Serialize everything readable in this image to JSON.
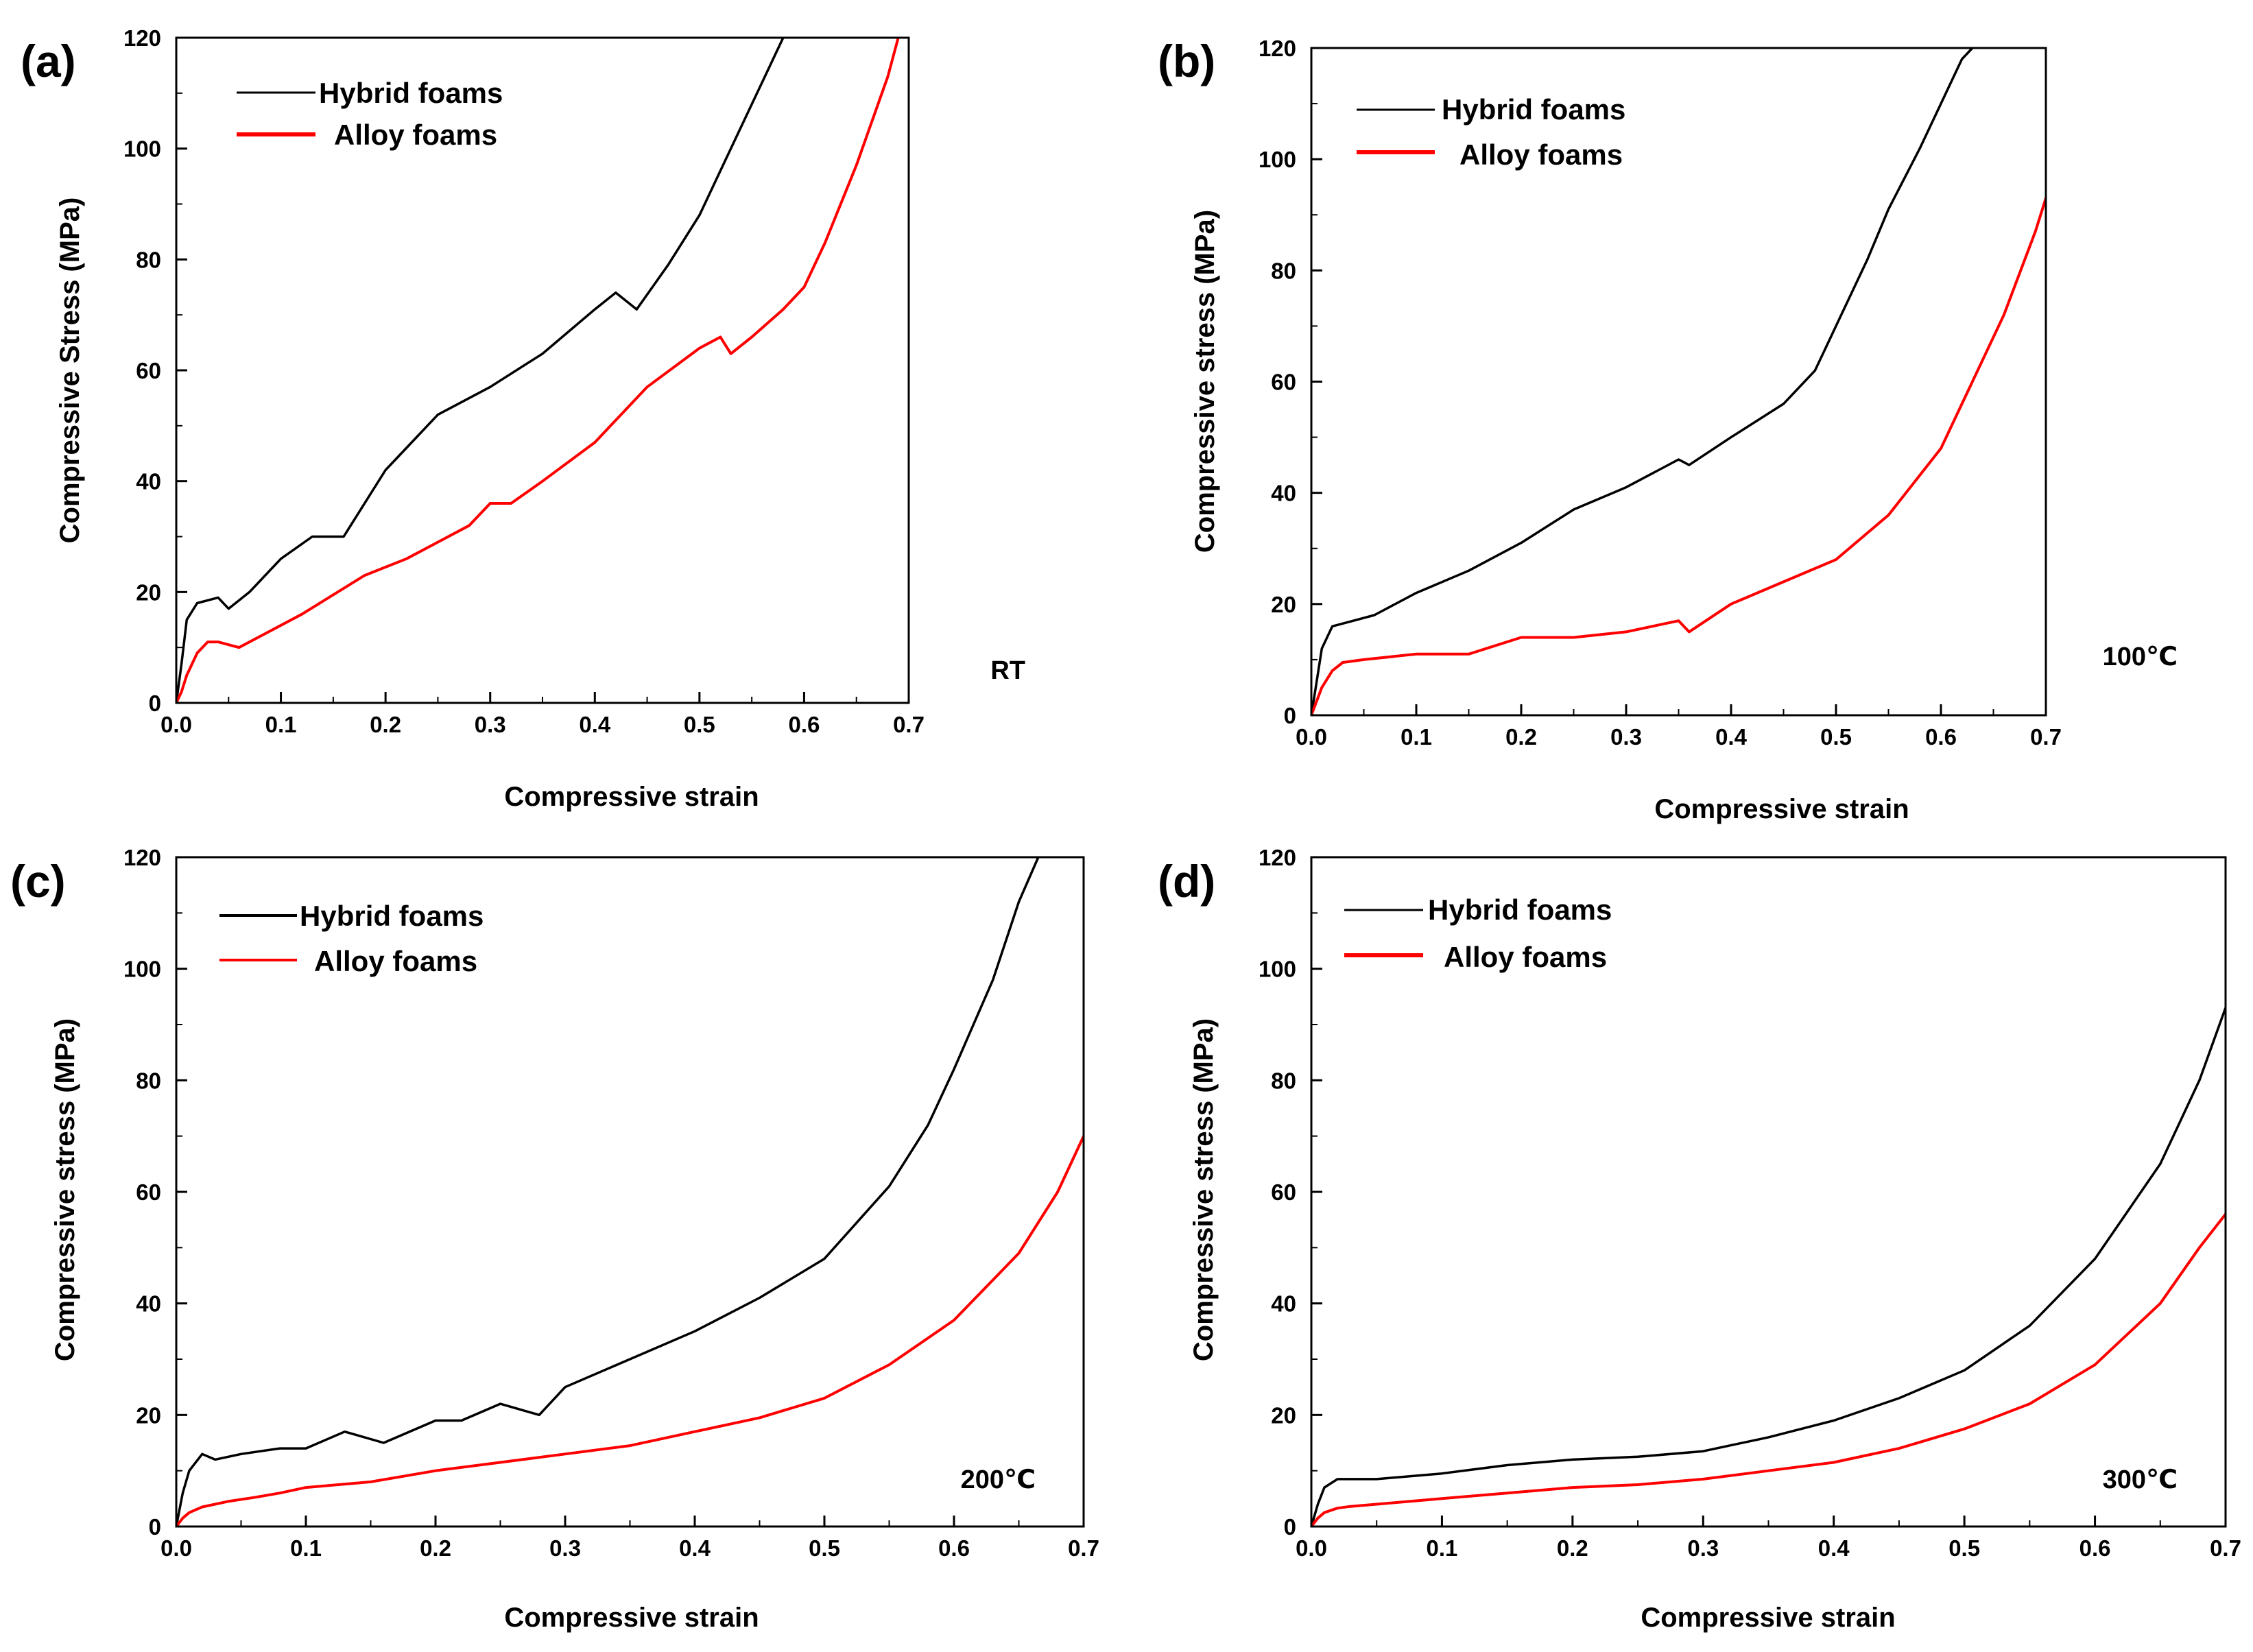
{
  "figure": {
    "hybrid_color": "#000000",
    "alloy_color": "#ff0000"
  },
  "chart_data": [
    {
      "type": "line",
      "panel_label": "(a)",
      "annotation": "RT",
      "xlabel": "Compressive strain",
      "ylabel": "Compressive Stress (MPa)",
      "xlim": [
        0,
        0.7
      ],
      "ylim": [
        0,
        120
      ],
      "xticks": [
        "0.0",
        "0.1",
        "0.2",
        "0.3",
        "0.4",
        "0.5",
        "0.6",
        "0.7"
      ],
      "yticks": [
        "0",
        "20",
        "40",
        "60",
        "80",
        "100",
        "120"
      ],
      "legend_position": "top-left",
      "series": [
        {
          "name": "Hybrid foams",
          "x": [
            0,
            0.005,
            0.01,
            0.02,
            0.04,
            0.05,
            0.07,
            0.1,
            0.13,
            0.16,
            0.2,
            0.23,
            0.25,
            0.3,
            0.35,
            0.4,
            0.42,
            0.44,
            0.47,
            0.5,
            0.53,
            0.56,
            0.58
          ],
          "y": [
            0,
            7,
            15,
            18,
            19,
            17,
            20,
            26,
            30,
            30,
            42,
            48,
            52,
            57,
            63,
            71,
            74,
            71,
            79,
            88,
            100,
            112,
            120
          ]
        },
        {
          "name": "Alloy foams",
          "x": [
            0,
            0.005,
            0.01,
            0.02,
            0.03,
            0.04,
            0.06,
            0.08,
            0.12,
            0.18,
            0.22,
            0.28,
            0.3,
            0.32,
            0.35,
            0.4,
            0.45,
            0.5,
            0.52,
            0.53,
            0.55,
            0.58,
            0.6,
            0.62,
            0.65,
            0.68,
            0.69
          ],
          "y": [
            0,
            2,
            5,
            9,
            11,
            11,
            10,
            12,
            16,
            23,
            26,
            32,
            36,
            36,
            40,
            47,
            57,
            64,
            66,
            63,
            66,
            71,
            75,
            83,
            97,
            113,
            120
          ]
        }
      ]
    },
    {
      "type": "line",
      "panel_label": "(b)",
      "annotation": "100℃",
      "xlabel": "Compressive strain",
      "ylabel": "Compressive stress (MPa)",
      "xlim": [
        0,
        0.7
      ],
      "ylim": [
        0,
        120
      ],
      "xticks": [
        "0.0",
        "0.1",
        "0.2",
        "0.3",
        "0.4",
        "0.5",
        "0.6",
        "0.7"
      ],
      "yticks": [
        "0",
        "20",
        "40",
        "60",
        "80",
        "100",
        "120"
      ],
      "legend_position": "top-left",
      "series": [
        {
          "name": "Hybrid foams",
          "x": [
            0,
            0.005,
            0.01,
            0.02,
            0.04,
            0.06,
            0.1,
            0.15,
            0.2,
            0.25,
            0.3,
            0.35,
            0.36,
            0.4,
            0.45,
            0.48,
            0.5,
            0.53,
            0.55,
            0.58,
            0.6,
            0.62,
            0.63
          ],
          "y": [
            0,
            6,
            12,
            16,
            17,
            18,
            22,
            26,
            31,
            37,
            41,
            46,
            45,
            50,
            56,
            62,
            70,
            82,
            91,
            102,
            110,
            118,
            120
          ]
        },
        {
          "name": "Alloy foams",
          "x": [
            0,
            0.01,
            0.02,
            0.03,
            0.05,
            0.1,
            0.15,
            0.2,
            0.25,
            0.3,
            0.35,
            0.36,
            0.4,
            0.45,
            0.5,
            0.55,
            0.6,
            0.63,
            0.66,
            0.69,
            0.7
          ],
          "y": [
            0,
            5,
            8,
            9.5,
            10,
            11,
            11,
            14,
            14,
            15,
            17,
            15,
            20,
            24,
            28,
            36,
            48,
            60,
            72,
            87,
            93
          ]
        }
      ]
    },
    {
      "type": "line",
      "panel_label": "(c)",
      "annotation": "200℃",
      "xlabel": "Compressive strain",
      "ylabel": "Compressive stress (MPa)",
      "xlim": [
        0,
        0.7
      ],
      "ylim": [
        0,
        120
      ],
      "xticks": [
        "0.0",
        "0.1",
        "0.2",
        "0.3",
        "0.4",
        "0.5",
        "0.6",
        "0.7"
      ],
      "yticks": [
        "0",
        "20",
        "40",
        "60",
        "80",
        "100",
        "120"
      ],
      "legend_position": "top-left",
      "series": [
        {
          "name": "Hybrid foams",
          "x": [
            0,
            0.005,
            0.01,
            0.02,
            0.03,
            0.05,
            0.08,
            0.1,
            0.13,
            0.16,
            0.2,
            0.22,
            0.25,
            0.28,
            0.3,
            0.35,
            0.4,
            0.45,
            0.5,
            0.55,
            0.58,
            0.6,
            0.63,
            0.65,
            0.665
          ],
          "y": [
            0,
            6,
            10,
            13,
            12,
            13,
            14,
            14,
            17,
            15,
            19,
            19,
            22,
            20,
            25,
            30,
            35,
            41,
            48,
            61,
            72,
            82,
            98,
            112,
            120
          ]
        },
        {
          "name": "Alloy foams",
          "x": [
            0,
            0.005,
            0.01,
            0.02,
            0.04,
            0.06,
            0.08,
            0.1,
            0.15,
            0.2,
            0.25,
            0.3,
            0.35,
            0.4,
            0.45,
            0.5,
            0.55,
            0.6,
            0.65,
            0.68,
            0.7
          ],
          "y": [
            0,
            1.5,
            2.5,
            3.5,
            4.5,
            5.2,
            6,
            7,
            8,
            10,
            11.5,
            13,
            14.5,
            17,
            19.5,
            23,
            29,
            37,
            49,
            60,
            70
          ]
        }
      ]
    },
    {
      "type": "line",
      "panel_label": "(d)",
      "annotation": "300℃",
      "xlabel": "Compressive strain",
      "ylabel": "Compressive stress (MPa)",
      "xlim": [
        0,
        0.7
      ],
      "ylim": [
        0,
        120
      ],
      "xticks": [
        "0.0",
        "0.1",
        "0.2",
        "0.3",
        "0.4",
        "0.5",
        "0.6",
        "0.7"
      ],
      "yticks": [
        "0",
        "20",
        "40",
        "60",
        "80",
        "100",
        "120"
      ],
      "legend_position": "top-left",
      "series": [
        {
          "name": "Hybrid foams",
          "x": [
            0,
            0.005,
            0.01,
            0.02,
            0.03,
            0.05,
            0.1,
            0.15,
            0.2,
            0.25,
            0.3,
            0.35,
            0.4,
            0.45,
            0.5,
            0.55,
            0.6,
            0.65,
            0.68,
            0.7
          ],
          "y": [
            0,
            4,
            7,
            8.5,
            8.5,
            8.5,
            9.5,
            11,
            12,
            12.5,
            13.5,
            16,
            19,
            23,
            28,
            36,
            48,
            65,
            80,
            93
          ]
        },
        {
          "name": "Alloy foams",
          "x": [
            0,
            0.005,
            0.01,
            0.02,
            0.03,
            0.05,
            0.1,
            0.15,
            0.2,
            0.25,
            0.3,
            0.35,
            0.4,
            0.45,
            0.5,
            0.55,
            0.6,
            0.65,
            0.68,
            0.7
          ],
          "y": [
            0,
            1.5,
            2.5,
            3.3,
            3.6,
            4,
            5,
            6,
            7,
            7.5,
            8.5,
            10,
            11.5,
            14,
            17.5,
            22,
            29,
            40,
            50,
            56
          ]
        }
      ]
    }
  ]
}
